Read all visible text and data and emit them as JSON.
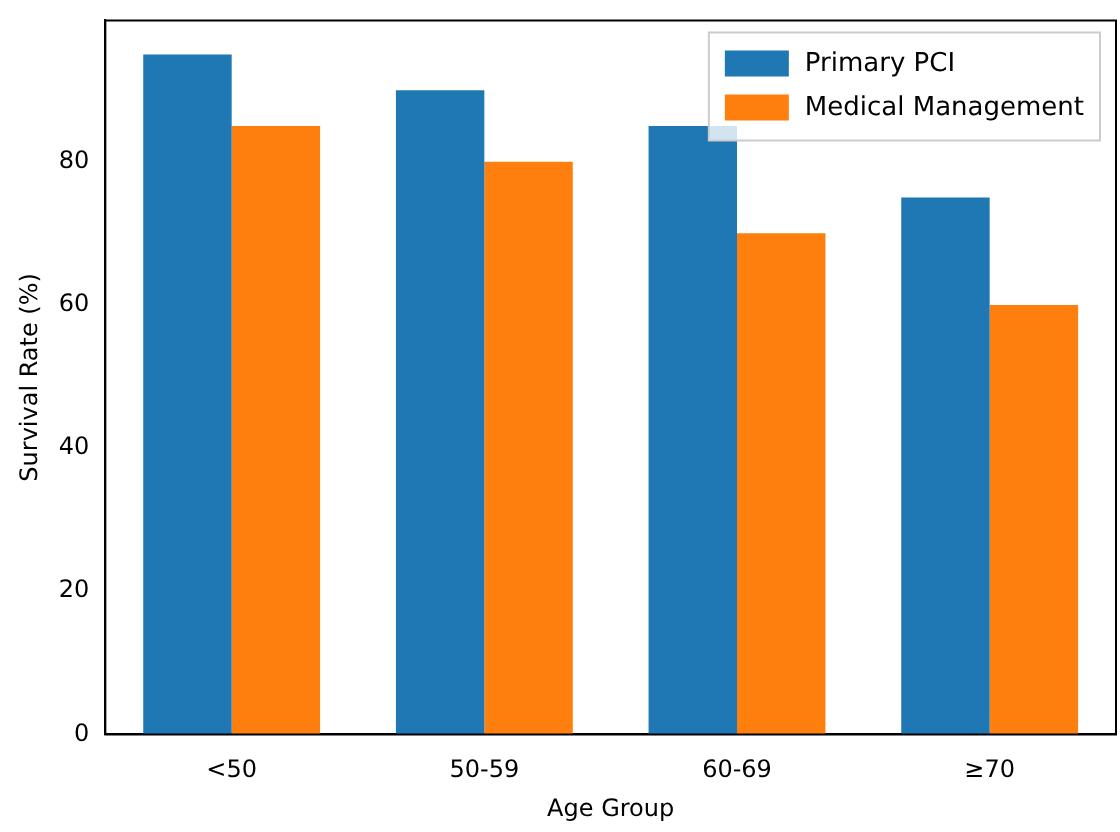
{
  "chart_data": {
    "type": "bar",
    "xlabel": "Age Group",
    "ylabel": "Survival Rate (%)",
    "categories": [
      "<50",
      "50-59",
      "60-69",
      "≥70"
    ],
    "series": [
      {
        "name": "Primary PCI",
        "color": "#1f77b4",
        "values": [
          95,
          90,
          85,
          75
        ]
      },
      {
        "name": "Medical Management",
        "color": "#ff7f0e",
        "values": [
          85,
          80,
          70,
          60
        ]
      }
    ],
    "ylim": [
      0,
      99.75
    ],
    "yticks": [
      0,
      20,
      40,
      60,
      80
    ],
    "grid": false,
    "legend": "top right"
  }
}
